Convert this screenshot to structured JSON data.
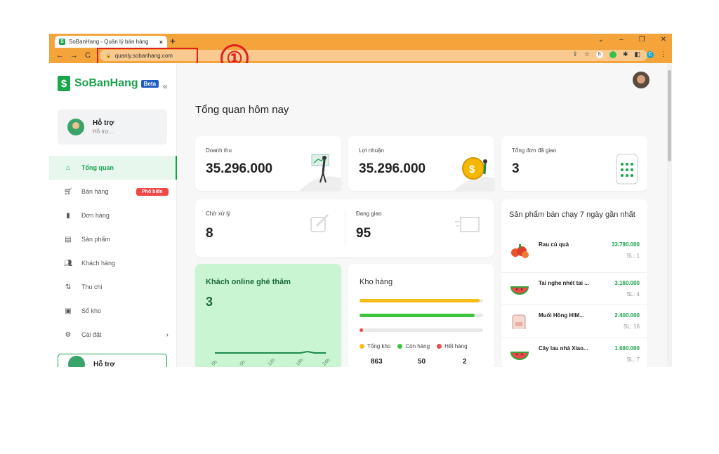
{
  "browser": {
    "tab_title": "SoBanHang - Quản lý bán hàng",
    "tab_close": "×",
    "new_tab": "+",
    "url": "quanly.sobanhang.com",
    "step_number": "①",
    "ext_profile": "C",
    "ext_b": "B"
  },
  "sidebar": {
    "brand": "SoBanHang",
    "beta": "Beta",
    "support_title": "Hỗ trợ",
    "support_sub": "Hỗ trợ...",
    "items": [
      {
        "label": "Tổng quan",
        "icon": "home-icon"
      },
      {
        "label": "Bán hàng",
        "icon": "cart-icon",
        "badge": "Phổ biến"
      },
      {
        "label": "Đơn hàng",
        "icon": "document-icon"
      },
      {
        "label": "Sản phẩm",
        "icon": "box-icon"
      },
      {
        "label": "Khách hàng",
        "icon": "users-icon"
      },
      {
        "label": "Thu chi",
        "icon": "transfer-icon"
      },
      {
        "label": "Sổ kho",
        "icon": "warehouse-icon"
      },
      {
        "label": "Cài đặt",
        "icon": "gear-icon"
      }
    ],
    "support2_title": "Hỗ trợ"
  },
  "main": {
    "title": "Tổng quan hôm nay",
    "revenue_label": "Doanh thu",
    "revenue_value": "35.296.000",
    "profit_label": "Lợi nhuận",
    "profit_value": "35.296.000",
    "delivered_label": "Tổng đơn đã giao",
    "delivered_value": "3",
    "pending_label": "Chờ xử lý",
    "pending_value": "8",
    "shipping_label": "Đang giao",
    "shipping_value": "95",
    "online_label": "Khách online ghé thăm",
    "online_value": "3",
    "online_ticks": [
      "0h",
      "6h",
      "12h",
      "18h",
      "24h"
    ],
    "stock_label": "Kho hàng",
    "stock_total_label": "Tổng kho",
    "stock_instock_label": "Còn hàng",
    "stock_out_label": "Hết hàng",
    "stock_total": "863",
    "stock_instock": "50",
    "stock_out": "2",
    "stock_bar_fill": [
      0.97,
      0.93,
      0.02
    ],
    "bestseller_title": "Sản phẩm bán chạy 7 ngày gần nhất",
    "bestsellers": [
      {
        "name": "Rau củ quả",
        "price": "33.790.000",
        "qty": "SL: 1"
      },
      {
        "name": "Tai nghe nhét tai ...",
        "price": "3.160.000",
        "qty": "SL: 4"
      },
      {
        "name": "Muối Hồng HIM...",
        "price": "2.400.000",
        "qty": "SL: 16"
      },
      {
        "name": "Cây lau nhà Xiao...",
        "price": "1.680.000",
        "qty": "SL: 7"
      }
    ]
  },
  "colors": {
    "brand": "#17a24a",
    "browser": "#f5a33b",
    "highlight": "#e02020",
    "bar_yellow": "#f5bd17",
    "bar_green": "#3cc43c",
    "bar_red": "#f04848"
  }
}
